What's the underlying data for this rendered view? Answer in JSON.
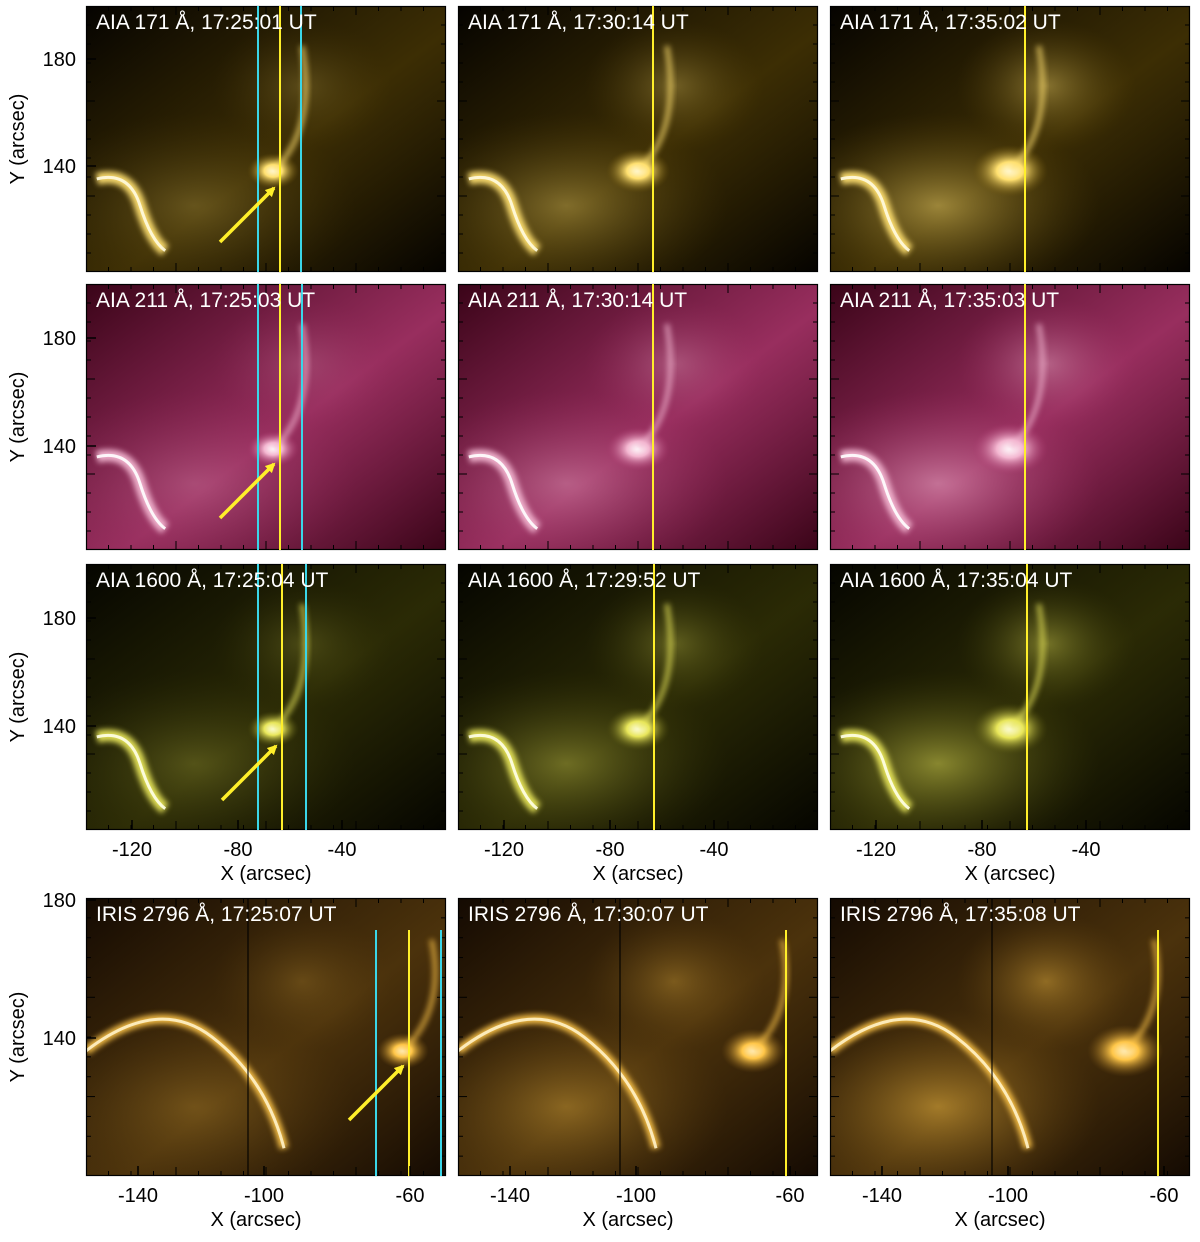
{
  "figure": {
    "rows": [
      {
        "id": "aia171",
        "palette": {
          "dark": "#050300",
          "mid": "#6b5208",
          "bright": "#ffe070",
          "peak": "#fffbe0"
        },
        "xaxis_ticks": [],
        "xaxis_title": "",
        "yaxis_ticks": [
          "180",
          "140"
        ],
        "yaxis_title": "Y (arcsec)",
        "panels": [
          {
            "label": "AIA 171 Å, 17:25:01 UT",
            "slits": "full"
          },
          {
            "label": "AIA 171 Å, 17:30:14 UT",
            "slits": "single"
          },
          {
            "label": "AIA 171 Å, 17:35:02 UT",
            "slits": "single"
          }
        ]
      },
      {
        "id": "aia211",
        "palette": {
          "dark": "#3a0418",
          "mid": "#a8356a",
          "bright": "#f3b6d0",
          "peak": "#ffffff"
        },
        "xaxis_ticks": [],
        "xaxis_title": "",
        "yaxis_ticks": [
          "180",
          "140"
        ],
        "yaxis_title": "Y (arcsec)",
        "panels": [
          {
            "label": "AIA 211 Å, 17:25:03 UT",
            "slits": "full"
          },
          {
            "label": "AIA 211 Å, 17:30:14 UT",
            "slits": "single"
          },
          {
            "label": "AIA 211 Å, 17:35:03 UT",
            "slits": "single"
          }
        ]
      },
      {
        "id": "aia1600",
        "palette": {
          "dark": "#050500",
          "mid": "#4b4a0a",
          "bright": "#e8e65a",
          "peak": "#ffffe8"
        },
        "xaxis_ticks": [
          "-120",
          "-80",
          "-40"
        ],
        "xaxis_title": "X (arcsec)",
        "yaxis_ticks": [
          "180",
          "140"
        ],
        "yaxis_title": "Y (arcsec)",
        "panels": [
          {
            "label": "AIA 1600 Å, 17:25:04 UT",
            "slits": "full"
          },
          {
            "label": "AIA 1600 Å, 17:29:52 UT",
            "slits": "single"
          },
          {
            "label": "AIA 1600 Å, 17:35:04 UT",
            "slits": "single"
          }
        ]
      },
      {
        "id": "iris2796",
        "palette": {
          "dark": "#140a02",
          "mid": "#7a5414",
          "bright": "#ffc648",
          "peak": "#fff2c8"
        },
        "xaxis_ticks": [
          "-140",
          "-100",
          "-60"
        ],
        "xaxis_title": "X (arcsec)",
        "yaxis_ticks": [
          "180",
          "140"
        ],
        "yaxis_title": "Y (arcsec)",
        "panels": [
          {
            "label": "IRIS 2796 Å, 17:25:07 UT",
            "slits": "full"
          },
          {
            "label": "IRIS 2796 Å, 17:30:07 UT",
            "slits": "single"
          },
          {
            "label": "IRIS 2796 Å, 17:35:08 UT",
            "slits": "single"
          }
        ]
      }
    ],
    "colors": {
      "slit_main": "#ffef2a",
      "slit_side": "#3ad6e8",
      "arrow": "#ffef2a",
      "frame": "#000000"
    }
  }
}
